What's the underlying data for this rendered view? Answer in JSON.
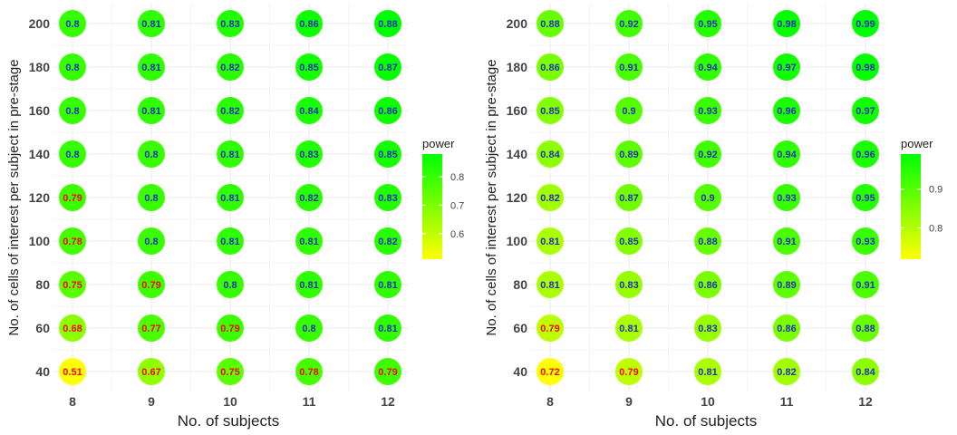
{
  "chart_data": [
    {
      "type": "heatmap",
      "xlabel": "No. of subjects",
      "ylabel": "No. of cells of interest per subject in pre-stage",
      "x": [
        8,
        9,
        10,
        11,
        12
      ],
      "y": [
        40,
        60,
        80,
        100,
        120,
        140,
        160,
        180,
        200
      ],
      "values": [
        [
          0.51,
          0.67,
          0.75,
          0.78,
          0.79
        ],
        [
          0.68,
          0.77,
          0.79,
          0.8,
          0.81
        ],
        [
          0.75,
          0.79,
          0.8,
          0.81,
          0.81
        ],
        [
          0.78,
          0.8,
          0.81,
          0.81,
          0.82
        ],
        [
          0.79,
          0.8,
          0.81,
          0.82,
          0.83
        ],
        [
          0.8,
          0.8,
          0.81,
          0.83,
          0.85
        ],
        [
          0.8,
          0.81,
          0.82,
          0.84,
          0.86
        ],
        [
          0.8,
          0.81,
          0.82,
          0.85,
          0.87
        ],
        [
          0.8,
          0.81,
          0.83,
          0.86,
          0.88
        ]
      ],
      "labels": [
        [
          "0.51",
          "0.67",
          "0.75",
          "0.78",
          "0.79"
        ],
        [
          "0.68",
          "0.77",
          "0.79",
          "0.8",
          "0.81"
        ],
        [
          "0.75",
          "0.79",
          "0.8",
          "0.81",
          "0.81"
        ],
        [
          "0.78",
          "0.8",
          "0.81",
          "0.81",
          "0.82"
        ],
        [
          "0.79",
          "0.8",
          "0.81",
          "0.82",
          "0.83"
        ],
        [
          "0.8",
          "0.8",
          "0.81",
          "0.83",
          "0.85"
        ],
        [
          "0.8",
          "0.81",
          "0.82",
          "0.84",
          "0.86"
        ],
        [
          "0.8",
          "0.81",
          "0.82",
          "0.85",
          "0.87"
        ],
        [
          "0.8",
          "0.81",
          "0.83",
          "0.86",
          "0.88"
        ]
      ],
      "label_threshold": 0.8,
      "label_color_below": "#ff0000",
      "label_color_above": "#1f2fbf",
      "legend": {
        "title": "power",
        "position": "right",
        "ticks": [
          "0.6",
          "0.7",
          "0.8"
        ],
        "tick_values": [
          0.6,
          0.7,
          0.8
        ]
      },
      "color_low": "#ffff00",
      "color_high": "#00ff00",
      "value_range": [
        0.51,
        0.88
      ],
      "grid": true
    },
    {
      "type": "heatmap",
      "xlabel": "No. of subjects",
      "ylabel": "No. of cells of interest per subject in pre-stage",
      "x": [
        8,
        9,
        10,
        11,
        12
      ],
      "y": [
        40,
        60,
        80,
        100,
        120,
        140,
        160,
        180,
        200
      ],
      "values": [
        [
          0.72,
          0.79,
          0.81,
          0.82,
          0.84
        ],
        [
          0.79,
          0.81,
          0.83,
          0.86,
          0.88
        ],
        [
          0.81,
          0.83,
          0.86,
          0.89,
          0.91
        ],
        [
          0.81,
          0.85,
          0.88,
          0.91,
          0.93
        ],
        [
          0.82,
          0.87,
          0.9,
          0.93,
          0.95
        ],
        [
          0.84,
          0.89,
          0.92,
          0.94,
          0.96
        ],
        [
          0.85,
          0.9,
          0.93,
          0.96,
          0.97
        ],
        [
          0.86,
          0.91,
          0.94,
          0.97,
          0.98
        ],
        [
          0.88,
          0.92,
          0.95,
          0.98,
          0.99
        ]
      ],
      "labels": [
        [
          "0.72",
          "0.79",
          "0.81",
          "0.82",
          "0.84"
        ],
        [
          "0.79",
          "0.81",
          "0.83",
          "0.86",
          "0.88"
        ],
        [
          "0.81",
          "0.83",
          "0.86",
          "0.89",
          "0.91"
        ],
        [
          "0.81",
          "0.85",
          "0.88",
          "0.91",
          "0.93"
        ],
        [
          "0.82",
          "0.87",
          "0.9",
          "0.93",
          "0.95"
        ],
        [
          "0.84",
          "0.89",
          "0.92",
          "0.94",
          "0.96"
        ],
        [
          "0.85",
          "0.9",
          "0.93",
          "0.96",
          "0.97"
        ],
        [
          "0.86",
          "0.91",
          "0.94",
          "0.97",
          "0.98"
        ],
        [
          "0.88",
          "0.92",
          "0.95",
          "0.98",
          "0.99"
        ]
      ],
      "label_threshold": 0.8,
      "label_color_below": "#ff0000",
      "label_color_above": "#1f2fbf",
      "legend": {
        "title": "power",
        "position": "right",
        "ticks": [
          "0.8",
          "0.9"
        ],
        "tick_values": [
          0.8,
          0.9
        ]
      },
      "color_low": "#ffff00",
      "color_high": "#00ff00",
      "value_range": [
        0.72,
        0.99
      ],
      "grid": true
    }
  ]
}
